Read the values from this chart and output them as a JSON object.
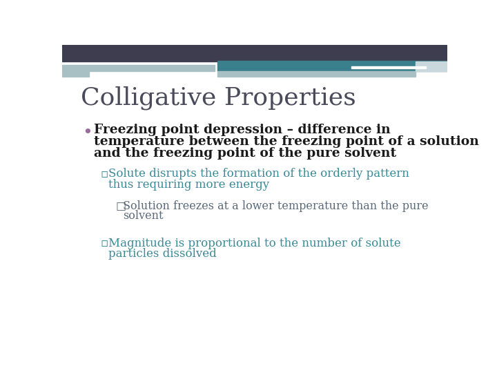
{
  "title": "Colligative Properties",
  "title_color": "#4a4a5a",
  "title_fontsize": 26,
  "background_color": "#ffffff",
  "header_dark_color": "#3d3d4f",
  "header_teal_color": "#3a7f8c",
  "header_light_color": "#a8bfc4",
  "header_lighter_color": "#c8d8dc",
  "bullet_marker": "•",
  "bullet_marker_color": "#9b6b9b",
  "bullet_marker_fontsize": 18,
  "bullet1_text_line1": "Freezing point depression – difference in",
  "bullet1_text_line2": "temperature between the freezing point of a solution",
  "bullet1_text_line3": "and the freezing point of the pure solvent",
  "bullet1_color": "#1a1a1a",
  "bullet1_fontsize": 13.5,
  "sub1_marker": "▫",
  "sub1_line1": "Solute disrupts the formation of the orderly pattern",
  "sub1_line2": "thus requiring more energy",
  "sub1_color": "#3a8a96",
  "sub1_fontsize": 12,
  "sub2_marker": "□",
  "sub2_line1": "Solution freezes at a lower temperature than the pure",
  "sub2_line2": "solvent",
  "sub2_color": "#5a6a7a",
  "sub2_fontsize": 11.5,
  "sub3_marker": "▫",
  "sub3_line1": "Magnitude is proportional to the number of solute",
  "sub3_line2": "particles dissolved",
  "sub3_color": "#3a8a96",
  "sub3_fontsize": 12
}
